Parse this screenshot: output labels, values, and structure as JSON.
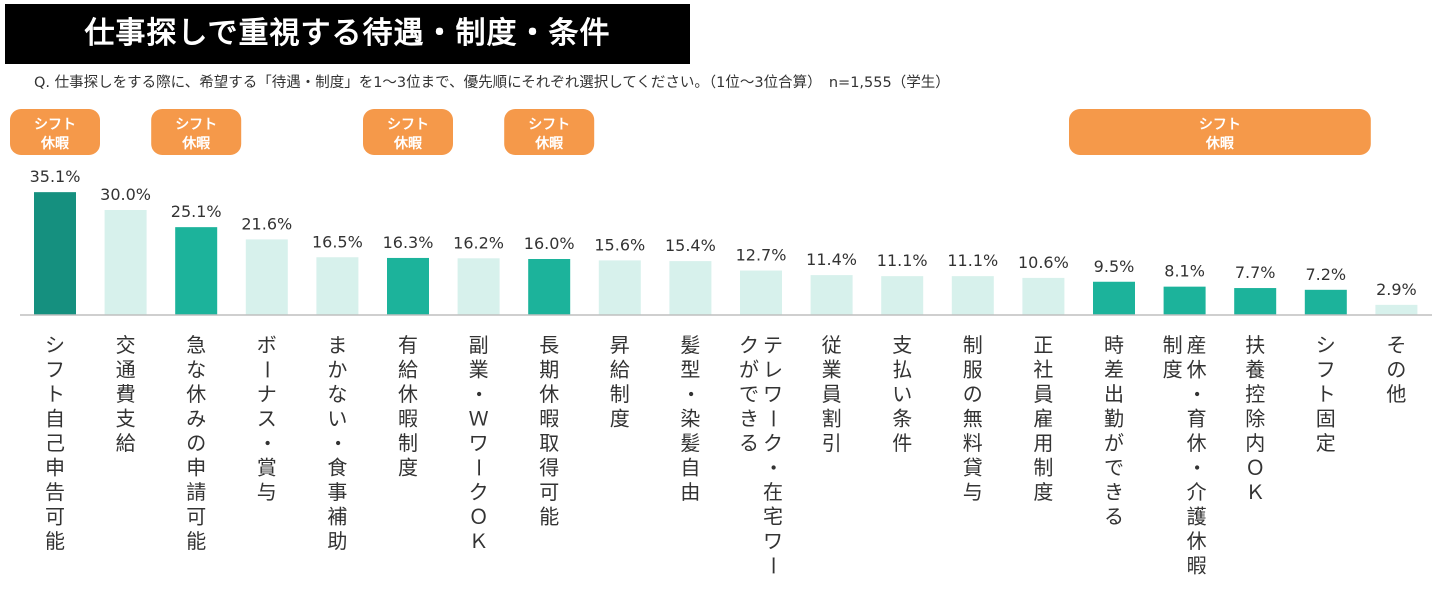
{
  "header": {
    "title": "仕事探しで重視する待遇・制度・条件",
    "question": "Q. 仕事探しをする際に、希望する「待遇・制度」を1～3位まで、優先順にそれぞれ選択してください。（1位～3位合算）　n=1,555（学生）"
  },
  "colors": {
    "dark_teal": "#15907f",
    "teal": "#1cb39b",
    "light": "#d7f1ec",
    "badge": "#f5994a",
    "axis": "#bfbfbf"
  },
  "badge_text": [
    "シフト",
    "休暇"
  ],
  "chart_data": {
    "type": "bar",
    "title": "仕事探しで重視する待遇・制度・条件",
    "xlabel": "",
    "ylabel": "",
    "ylim": [
      0,
      40
    ],
    "grid": false,
    "categories": [
      "シフト自己申告可能",
      "交通費支給",
      "急な休みの申請可能",
      "ボーナス・賞与",
      "まかない・食事補助",
      "有給休暇制度",
      "副業・ＷワークＯＫ",
      "長期休暇取得可能",
      "昇給制度",
      "髪型・染髪自由",
      "テレワーク・在宅ワークができる",
      "従業員割引",
      "支払い条件",
      "制服の無料貸与",
      "正社員雇用制度",
      "時差出勤ができる",
      "産休・育休・介護休暇制度",
      "扶養控除内ＯＫ",
      "シフト固定",
      "その他"
    ],
    "values": [
      35.1,
      30.0,
      25.1,
      21.6,
      16.5,
      16.3,
      16.2,
      16.0,
      15.6,
      15.4,
      12.7,
      11.4,
      11.1,
      11.1,
      10.6,
      9.5,
      8.1,
      7.7,
      7.2,
      2.9
    ],
    "value_labels": [
      "35.1%",
      "30.0%",
      "25.1%",
      "21.6%",
      "16.5%",
      "16.3%",
      "16.2%",
      "16.0%",
      "15.6%",
      "15.4%",
      "12.7%",
      "11.4%",
      "11.1%",
      "11.1%",
      "10.6%",
      "9.5%",
      "8.1%",
      "7.7%",
      "7.2%",
      "2.9%"
    ],
    "highlight": [
      "dark",
      "light",
      "teal",
      "light",
      "light",
      "teal",
      "light",
      "teal",
      "light",
      "light",
      "light",
      "light",
      "light",
      "light",
      "light",
      "teal",
      "teal",
      "teal",
      "teal",
      "light"
    ],
    "badges": [
      {
        "from": 0,
        "to": 0
      },
      {
        "from": 2,
        "to": 2
      },
      {
        "from": 5,
        "to": 5
      },
      {
        "from": 7,
        "to": 7
      },
      {
        "from": 15,
        "to": 18
      }
    ]
  }
}
